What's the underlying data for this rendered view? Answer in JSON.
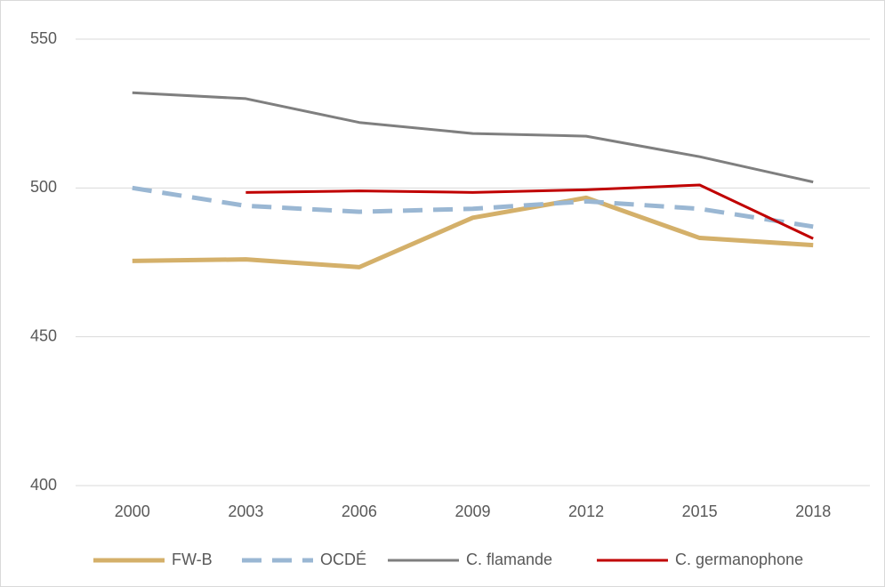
{
  "chart_data": {
    "type": "line",
    "categories": [
      "2000",
      "2003",
      "2006",
      "2009",
      "2012",
      "2015",
      "2018"
    ],
    "series": [
      {
        "name": "FW-B",
        "color": "#d4b06a",
        "dash": false,
        "width": 5,
        "values": [
          475.5,
          476,
          473.4,
          490,
          496.7,
          483.2,
          480.8
        ]
      },
      {
        "name": "OCDÉ",
        "color": "#9ab7d3",
        "dash": true,
        "width": 5,
        "values": [
          500,
          494,
          492,
          493,
          495.5,
          493,
          487
        ]
      },
      {
        "name": "C. flamande",
        "color": "#7f7f7f",
        "dash": false,
        "width": 3,
        "values": [
          532,
          530,
          522,
          518.3,
          517.4,
          510.5,
          502
        ]
      },
      {
        "name": "C. germanophone",
        "color": "#c00000",
        "dash": false,
        "width": 3,
        "values": [
          null,
          498.5,
          499,
          498.5,
          499.4,
          501,
          483
        ]
      }
    ],
    "ylim": [
      400,
      550
    ],
    "yticks": [
      400,
      450,
      500,
      550
    ],
    "grid": true,
    "legend": "bottom"
  }
}
